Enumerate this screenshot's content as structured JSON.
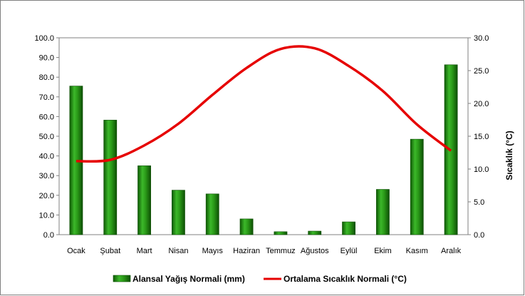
{
  "chart_data": {
    "type": "bar",
    "categories": [
      "Ocak",
      "Şubat",
      "Mart",
      "Nisan",
      "Mayıs",
      "Haziran",
      "Temmuz",
      "Ağustos",
      "Eylül",
      "Ekim",
      "Kasım",
      "Aralık"
    ],
    "series": [
      {
        "name": "Alansal Yağış Normali (mm)",
        "type": "bar",
        "axis": "left",
        "color": "#2e9a1a",
        "values": [
          75.5,
          58.2,
          35.0,
          22.6,
          20.7,
          8.0,
          1.5,
          1.8,
          6.5,
          23.0,
          48.5,
          86.3
        ]
      },
      {
        "name": "Ortalama Sıcaklık Normali (°C)",
        "type": "line",
        "axis": "right",
        "color": "#e60000",
        "values": [
          11.2,
          11.4,
          13.6,
          16.9,
          21.3,
          25.4,
          28.3,
          28.4,
          25.7,
          21.9,
          16.8,
          12.8
        ]
      }
    ],
    "y_left": {
      "ylim": [
        0,
        100
      ],
      "ticks": [
        "0.0",
        "10.0",
        "20.0",
        "30.0",
        "40.0",
        "50.0",
        "60.0",
        "70.0",
        "80.0",
        "90.0",
        "100.0"
      ],
      "label": ""
    },
    "y_right": {
      "ylim": [
        0,
        30
      ],
      "ticks": [
        "0.0",
        "5.0",
        "10.0",
        "15.0",
        "20.0",
        "25.0",
        "30.0"
      ],
      "label": "Sıcaklık (°C)"
    },
    "title": "",
    "xlabel": "",
    "grid": false,
    "legend": "bottom"
  }
}
